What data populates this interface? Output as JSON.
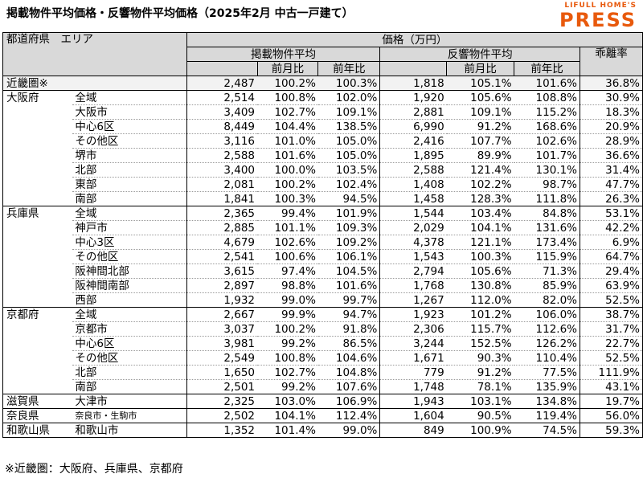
{
  "title": "掲載物件平均価格・反響物件平均価格（2025年2月 中古一戸建て）",
  "logo": {
    "top": "LIFULL HOME'S",
    "main": "PRESS",
    "color": "#e8590c"
  },
  "header": {
    "pref_area": "都道府県　エリア",
    "price": "価格（万円）",
    "listed_group": "掲載物件平均",
    "response_group": "反響物件平均",
    "rate": "乖離率",
    "mom": "前月比",
    "yoy": "前年比"
  },
  "rows": [
    {
      "pref": "近畿圏※",
      "area": "",
      "lvl": 0,
      "l": "2,487",
      "lm": "100.2%",
      "ly": "100.3%",
      "r": "1,818",
      "rm": "105.1%",
      "ry": "101.6%",
      "d": "36.8%"
    },
    {
      "pref": "大阪府",
      "area": "全域",
      "lvl": 0,
      "l": "2,514",
      "lm": "100.8%",
      "ly": "102.0%",
      "r": "1,920",
      "rm": "105.6%",
      "ry": "108.8%",
      "d": "30.9%"
    },
    {
      "pref": "",
      "area": "大阪市",
      "lvl": 1,
      "l": "3,409",
      "lm": "102.7%",
      "ly": "109.1%",
      "r": "2,881",
      "rm": "109.1%",
      "ry": "115.2%",
      "d": "18.3%"
    },
    {
      "pref": "",
      "area": "中心6区",
      "lvl": 2,
      "l": "8,449",
      "lm": "104.4%",
      "ly": "138.5%",
      "r": "6,990",
      "rm": "91.2%",
      "ry": "168.6%",
      "d": "20.9%"
    },
    {
      "pref": "",
      "area": "その他区",
      "lvl": 2,
      "l": "3,116",
      "lm": "101.0%",
      "ly": "105.0%",
      "r": "2,416",
      "rm": "107.7%",
      "ry": "102.6%",
      "d": "28.9%"
    },
    {
      "pref": "",
      "area": "堺市",
      "lvl": 1,
      "l": "2,588",
      "lm": "101.6%",
      "ly": "105.0%",
      "r": "1,895",
      "rm": "89.9%",
      "ry": "101.7%",
      "d": "36.6%"
    },
    {
      "pref": "",
      "area": "北部",
      "lvl": 1,
      "l": "3,400",
      "lm": "100.0%",
      "ly": "103.5%",
      "r": "2,588",
      "rm": "121.4%",
      "ry": "130.1%",
      "d": "31.4%"
    },
    {
      "pref": "",
      "area": "東部",
      "lvl": 1,
      "l": "2,081",
      "lm": "100.2%",
      "ly": "102.4%",
      "r": "1,408",
      "rm": "102.2%",
      "ry": "98.7%",
      "d": "47.7%"
    },
    {
      "pref": "",
      "area": "南部",
      "lvl": 1,
      "l": "1,841",
      "lm": "100.3%",
      "ly": "94.5%",
      "r": "1,458",
      "rm": "128.3%",
      "ry": "111.8%",
      "d": "26.3%"
    },
    {
      "pref": "兵庫県",
      "area": "全域",
      "lvl": 0,
      "l": "2,365",
      "lm": "99.4%",
      "ly": "101.9%",
      "r": "1,544",
      "rm": "103.4%",
      "ry": "84.8%",
      "d": "53.1%"
    },
    {
      "pref": "",
      "area": "神戸市",
      "lvl": 1,
      "l": "2,885",
      "lm": "101.1%",
      "ly": "109.3%",
      "r": "2,029",
      "rm": "104.1%",
      "ry": "131.6%",
      "d": "42.2%"
    },
    {
      "pref": "",
      "area": "中心3区",
      "lvl": 2,
      "l": "4,679",
      "lm": "102.6%",
      "ly": "109.2%",
      "r": "4,378",
      "rm": "121.1%",
      "ry": "173.4%",
      "d": "6.9%"
    },
    {
      "pref": "",
      "area": "その他区",
      "lvl": 2,
      "l": "2,541",
      "lm": "100.6%",
      "ly": "106.1%",
      "r": "1,543",
      "rm": "100.3%",
      "ry": "115.9%",
      "d": "64.7%"
    },
    {
      "pref": "",
      "area": "阪神間北部",
      "lvl": 1,
      "l": "3,615",
      "lm": "97.4%",
      "ly": "104.5%",
      "r": "2,794",
      "rm": "105.6%",
      "ry": "71.3%",
      "d": "29.4%"
    },
    {
      "pref": "",
      "area": "阪神間南部",
      "lvl": 1,
      "l": "2,897",
      "lm": "98.8%",
      "ly": "101.6%",
      "r": "1,768",
      "rm": "130.8%",
      "ry": "85.9%",
      "d": "63.9%"
    },
    {
      "pref": "",
      "area": "西部",
      "lvl": 1,
      "l": "1,932",
      "lm": "99.0%",
      "ly": "99.7%",
      "r": "1,267",
      "rm": "112.0%",
      "ry": "82.0%",
      "d": "52.5%"
    },
    {
      "pref": "京都府",
      "area": "全域",
      "lvl": 0,
      "l": "2,667",
      "lm": "99.9%",
      "ly": "94.7%",
      "r": "1,923",
      "rm": "101.2%",
      "ry": "106.0%",
      "d": "38.7%"
    },
    {
      "pref": "",
      "area": "京都市",
      "lvl": 1,
      "l": "3,037",
      "lm": "100.2%",
      "ly": "91.8%",
      "r": "2,306",
      "rm": "115.7%",
      "ry": "112.6%",
      "d": "31.7%"
    },
    {
      "pref": "",
      "area": "中心6区",
      "lvl": 2,
      "l": "3,981",
      "lm": "99.2%",
      "ly": "86.5%",
      "r": "3,244",
      "rm": "152.5%",
      "ry": "126.2%",
      "d": "22.7%"
    },
    {
      "pref": "",
      "area": "その他区",
      "lvl": 2,
      "l": "2,549",
      "lm": "100.8%",
      "ly": "104.6%",
      "r": "1,671",
      "rm": "90.3%",
      "ry": "110.4%",
      "d": "52.5%"
    },
    {
      "pref": "",
      "area": "北部",
      "lvl": 1,
      "l": "1,650",
      "lm": "102.7%",
      "ly": "104.8%",
      "r": "779",
      "rm": "91.2%",
      "ry": "77.5%",
      "d": "111.9%"
    },
    {
      "pref": "",
      "area": "南部",
      "lvl": 1,
      "l": "2,501",
      "lm": "99.2%",
      "ly": "107.6%",
      "r": "1,748",
      "rm": "78.1%",
      "ry": "135.9%",
      "d": "43.1%"
    },
    {
      "pref": "滋賀県",
      "area": "大津市",
      "lvl": 0,
      "l": "2,325",
      "lm": "103.0%",
      "ly": "106.9%",
      "r": "1,943",
      "rm": "103.1%",
      "ry": "134.8%",
      "d": "19.7%"
    },
    {
      "pref": "奈良県",
      "area": "奈良市・生駒市",
      "lvl": 0,
      "small": true,
      "l": "2,502",
      "lm": "104.1%",
      "ly": "112.4%",
      "r": "1,604",
      "rm": "90.5%",
      "ry": "119.4%",
      "d": "56.0%"
    },
    {
      "pref": "和歌山県",
      "area": "和歌山市",
      "lvl": 0,
      "l": "1,352",
      "lm": "101.4%",
      "ly": "99.0%",
      "r": "849",
      "rm": "100.9%",
      "ry": "74.5%",
      "d": "59.3%"
    }
  ],
  "footnote": "※近畿圏：大阪府、兵庫県、京都府"
}
